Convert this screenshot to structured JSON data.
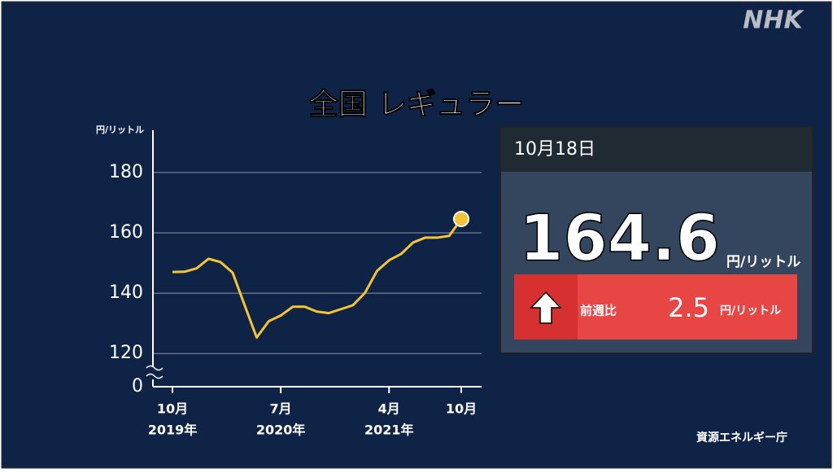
{
  "brand": "NHK",
  "source": "資源エネルギー庁",
  "chart_data": {
    "type": "line",
    "title": "全国 レギュラー",
    "y_unit": "円/リットル",
    "x": [
      "2019-10",
      "2019-11",
      "2019-12",
      "2020-01",
      "2020-02",
      "2020-03",
      "2020-04",
      "2020-05",
      "2020-06",
      "2020-07",
      "2020-08",
      "2020-09",
      "2020-10",
      "2020-11",
      "2020-12",
      "2021-01",
      "2021-02",
      "2021-03",
      "2021-04",
      "2021-05",
      "2021-06",
      "2021-07",
      "2021-08",
      "2021-09",
      "2021-10"
    ],
    "series": [
      {
        "name": "全国 レギュラー",
        "color": "#f5c431",
        "values": [
          147,
          147.1,
          148.2,
          151.4,
          150.3,
          146.8,
          136,
          125.3,
          130.7,
          132.6,
          135.5,
          135.5,
          133.9,
          133.4,
          134.7,
          136,
          140.1,
          147.4,
          150.9,
          153,
          156.8,
          158.4,
          158.4,
          159,
          164.6
        ]
      }
    ],
    "ylim": [
      109,
      194
    ],
    "yticks": [
      120,
      140,
      160,
      180
    ],
    "y_break_tick": 0,
    "grid": true,
    "xticks": [
      {
        "value": "2019-10",
        "label": "10月",
        "year": "2019年"
      },
      {
        "value": "2020-07",
        "label": "7月",
        "year": "2020年"
      },
      {
        "value": "2021-04",
        "label": "4月",
        "year": "2021年"
      },
      {
        "value": "2021-10",
        "label": "10月"
      }
    ]
  },
  "panel": {
    "date": "10月18日",
    "price": 164.6,
    "unit": "円/リットル",
    "change_label": "前週比",
    "change": 2.5,
    "change_unit": "円/リットル"
  }
}
